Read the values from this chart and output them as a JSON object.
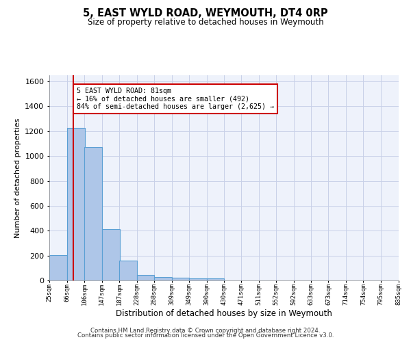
{
  "title": "5, EAST WYLD ROAD, WEYMOUTH, DT4 0RP",
  "subtitle": "Size of property relative to detached houses in Weymouth",
  "xlabel": "Distribution of detached houses by size in Weymouth",
  "ylabel": "Number of detached properties",
  "bar_left_edges": [
    25,
    66,
    106,
    147,
    187,
    228,
    268,
    309,
    349,
    390,
    430,
    471,
    511,
    552,
    592,
    633,
    673,
    714,
    754,
    795
  ],
  "bar_heights": [
    205,
    1225,
    1075,
    410,
    160,
    45,
    25,
    20,
    15,
    15,
    0,
    0,
    0,
    0,
    0,
    0,
    0,
    0,
    0,
    0
  ],
  "bin_width": 41,
  "tick_labels": [
    "25sqm",
    "66sqm",
    "106sqm",
    "147sqm",
    "187sqm",
    "228sqm",
    "268sqm",
    "309sqm",
    "349sqm",
    "390sqm",
    "430sqm",
    "471sqm",
    "511sqm",
    "552sqm",
    "592sqm",
    "633sqm",
    "673sqm",
    "714sqm",
    "754sqm",
    "795sqm",
    "835sqm"
  ],
  "bar_color": "#aec6e8",
  "bar_edge_color": "#5a9fd4",
  "property_line_x": 81,
  "property_line_color": "#cc0000",
  "ylim": [
    0,
    1650
  ],
  "yticks": [
    0,
    200,
    400,
    600,
    800,
    1000,
    1200,
    1400,
    1600
  ],
  "annotation_text": "5 EAST WYLD ROAD: 81sqm\n← 16% of detached houses are smaller (492)\n84% of semi-detached houses are larger (2,625) →",
  "annotation_box_color": "#cc0000",
  "footer_line1": "Contains HM Land Registry data © Crown copyright and database right 2024.",
  "footer_line2": "Contains public sector information licensed under the Open Government Licence v3.0.",
  "background_color": "#eef2fb",
  "grid_color": "#c8d0e8"
}
